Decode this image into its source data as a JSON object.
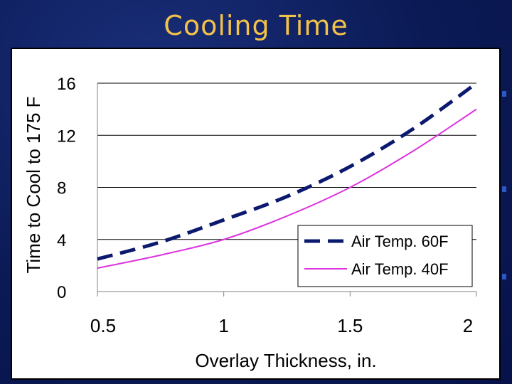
{
  "slide": {
    "title": "Cooling Time"
  },
  "colors": {
    "background": "#0d1f5c",
    "title": "#f3c24a",
    "series_60": "#0b1a6e",
    "series_40": "#dd33dd"
  },
  "chart_data": {
    "type": "line",
    "title": "",
    "xlabel": "Overlay Thickness, in.",
    "ylabel": "Time to Cool to 175 F",
    "xlim": [
      0.5,
      2
    ],
    "ylim": [
      0,
      16
    ],
    "xticks": [
      0.5,
      1,
      1.5,
      2
    ],
    "xtick_labels": [
      "0.5",
      "1",
      "1.5",
      "2"
    ],
    "yticks": [
      0,
      4,
      8,
      12,
      16
    ],
    "ytick_labels": [
      "0",
      "4",
      "8",
      "12",
      "16"
    ],
    "grid": "horizontal",
    "legend_position": "bottom-right",
    "series": [
      {
        "name": "Air Temp. 60F",
        "style": "dashed",
        "x": [
          0.5,
          0.75,
          1.0,
          1.25,
          1.5,
          1.75,
          2.0
        ],
        "y": [
          2.5,
          3.8,
          5.5,
          7.3,
          9.6,
          12.5,
          16.0
        ]
      },
      {
        "name": "Air Temp. 40F",
        "style": "solid",
        "x": [
          0.5,
          0.75,
          1.0,
          1.25,
          1.5,
          1.75,
          2.0
        ],
        "y": [
          1.8,
          2.8,
          4.0,
          5.8,
          8.0,
          10.8,
          14.0
        ]
      }
    ]
  }
}
